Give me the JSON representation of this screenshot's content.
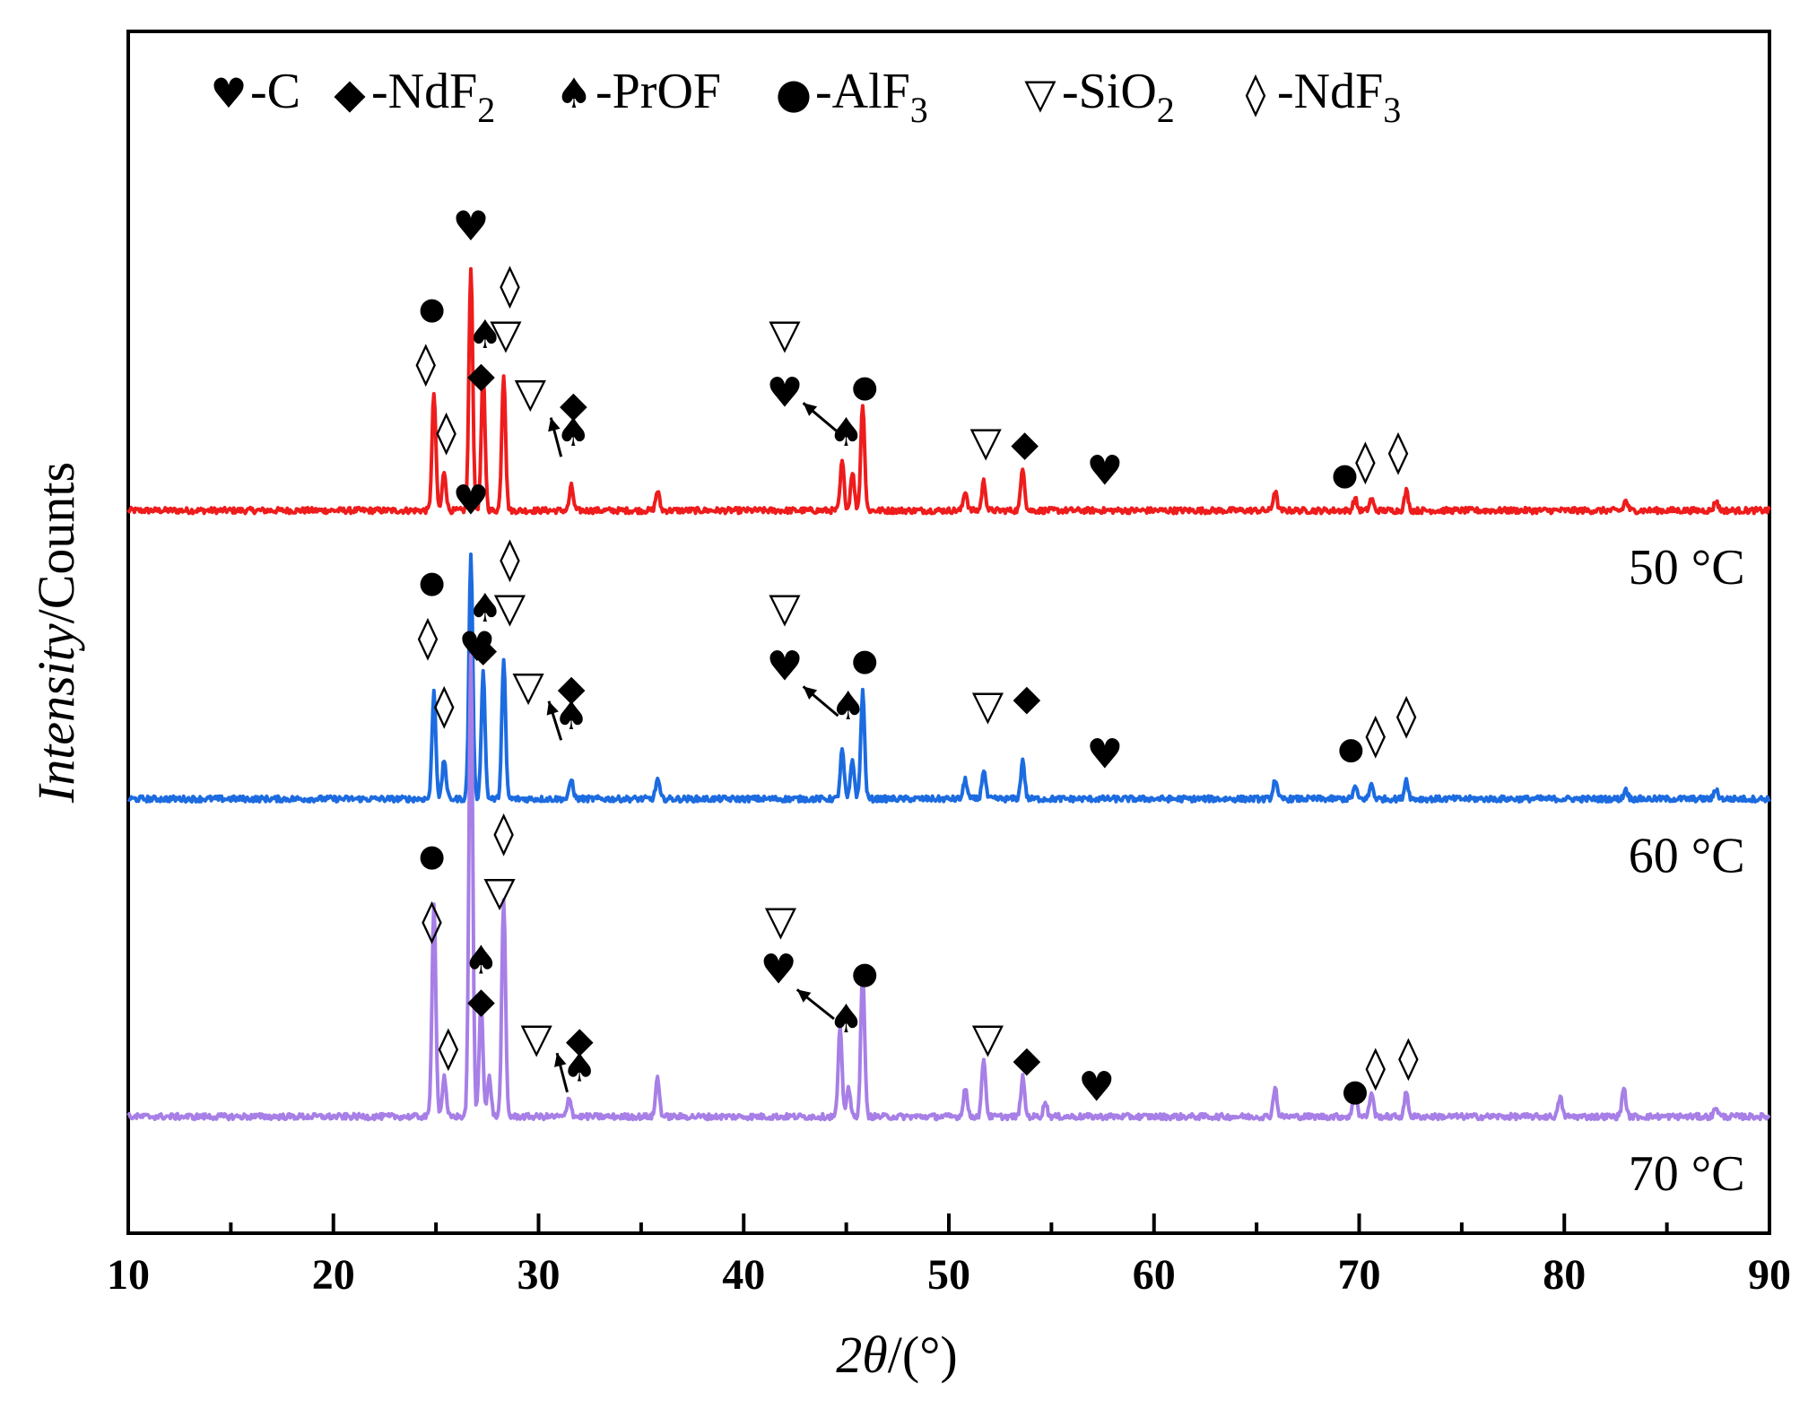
{
  "chart_data": {
    "type": "line",
    "title": "",
    "xlabel_prefix": "2θ",
    "xlabel_suffix": "/(°)",
    "ylabel_italic": "Intensity",
    "ylabel_rest": "/Counts",
    "xlim": [
      10,
      90
    ],
    "xticks": [
      10,
      20,
      30,
      40,
      50,
      60,
      70,
      80,
      90
    ],
    "grid": false,
    "legend_position": "top",
    "legend": [
      {
        "symbol": "♥",
        "label": "-C",
        "sub": ""
      },
      {
        "symbol": "◆",
        "label": "-NdF",
        "sub": "2"
      },
      {
        "symbol": "♠",
        "label": "-PrOF",
        "sub": ""
      },
      {
        "symbol": "●",
        "label": "-AlF",
        "sub": "3"
      },
      {
        "symbol": "▽",
        "label": "-SiO",
        "sub": "2"
      },
      {
        "symbol": "◊",
        "label": "-NdF",
        "sub": "3"
      }
    ],
    "series": [
      {
        "name": "50 °C",
        "color": "#ee1c1c",
        "offset": 0.62,
        "peaks": [
          {
            "x": 24.9,
            "h": 0.12
          },
          {
            "x": 25.4,
            "h": 0.04
          },
          {
            "x": 26.7,
            "h": 0.25
          },
          {
            "x": 27.3,
            "h": 0.14
          },
          {
            "x": 28.3,
            "h": 0.14
          },
          {
            "x": 31.6,
            "h": 0.025
          },
          {
            "x": 35.8,
            "h": 0.02
          },
          {
            "x": 44.8,
            "h": 0.05
          },
          {
            "x": 45.3,
            "h": 0.04
          },
          {
            "x": 45.8,
            "h": 0.11
          },
          {
            "x": 50.8,
            "h": 0.02
          },
          {
            "x": 51.7,
            "h": 0.03
          },
          {
            "x": 53.6,
            "h": 0.045
          },
          {
            "x": 65.9,
            "h": 0.02
          },
          {
            "x": 69.8,
            "h": 0.012
          },
          {
            "x": 70.6,
            "h": 0.012
          },
          {
            "x": 72.3,
            "h": 0.02
          },
          {
            "x": 83.0,
            "h": 0.01
          },
          {
            "x": 87.4,
            "h": 0.01
          }
        ]
      },
      {
        "name": "60 °C",
        "color": "#1c6be0",
        "offset": 0.325,
        "peaks": [
          {
            "x": 24.9,
            "h": 0.11
          },
          {
            "x": 25.4,
            "h": 0.04
          },
          {
            "x": 26.7,
            "h": 0.25
          },
          {
            "x": 27.3,
            "h": 0.13
          },
          {
            "x": 28.3,
            "h": 0.14
          },
          {
            "x": 31.6,
            "h": 0.02
          },
          {
            "x": 35.8,
            "h": 0.02
          },
          {
            "x": 44.8,
            "h": 0.05
          },
          {
            "x": 45.3,
            "h": 0.04
          },
          {
            "x": 45.8,
            "h": 0.11
          },
          {
            "x": 50.8,
            "h": 0.02
          },
          {
            "x": 51.7,
            "h": 0.03
          },
          {
            "x": 53.6,
            "h": 0.04
          },
          {
            "x": 65.9,
            "h": 0.02
          },
          {
            "x": 69.8,
            "h": 0.012
          },
          {
            "x": 70.6,
            "h": 0.015
          },
          {
            "x": 72.3,
            "h": 0.02
          },
          {
            "x": 83.0,
            "h": 0.01
          },
          {
            "x": 87.4,
            "h": 0.01
          }
        ]
      },
      {
        "name": "70 °C",
        "color": "#a77fe6",
        "offset": 0.0,
        "peaks": [
          {
            "x": 24.9,
            "h": 0.22
          },
          {
            "x": 25.4,
            "h": 0.04
          },
          {
            "x": 26.7,
            "h": 0.47
          },
          {
            "x": 27.2,
            "h": 0.12
          },
          {
            "x": 27.6,
            "h": 0.04
          },
          {
            "x": 28.3,
            "h": 0.22
          },
          {
            "x": 31.5,
            "h": 0.02
          },
          {
            "x": 35.8,
            "h": 0.04
          },
          {
            "x": 44.7,
            "h": 0.09
          },
          {
            "x": 45.1,
            "h": 0.03
          },
          {
            "x": 45.8,
            "h": 0.15
          },
          {
            "x": 50.8,
            "h": 0.03
          },
          {
            "x": 51.7,
            "h": 0.06
          },
          {
            "x": 53.6,
            "h": 0.04
          },
          {
            "x": 54.7,
            "h": 0.015
          },
          {
            "x": 65.9,
            "h": 0.03
          },
          {
            "x": 69.8,
            "h": 0.03
          },
          {
            "x": 70.6,
            "h": 0.025
          },
          {
            "x": 72.3,
            "h": 0.025
          },
          {
            "x": 79.8,
            "h": 0.02
          },
          {
            "x": 82.9,
            "h": 0.03
          },
          {
            "x": 87.4,
            "h": 0.01
          }
        ]
      }
    ],
    "markers": [
      {
        "series": 0,
        "symbol": "♥",
        "x": 26.7,
        "y": 0.91
      },
      {
        "series": 0,
        "symbol": "●",
        "x": 24.8,
        "y": 0.83
      },
      {
        "series": 0,
        "symbol": "◊",
        "x": 24.5,
        "y": 0.77
      },
      {
        "series": 0,
        "symbol": "◊",
        "x": 28.6,
        "y": 0.85
      },
      {
        "series": 0,
        "symbol": "♠",
        "x": 27.4,
        "y": 0.8
      },
      {
        "series": 0,
        "symbol": "▽",
        "x": 28.4,
        "y": 0.8
      },
      {
        "series": 0,
        "symbol": "◆",
        "x": 27.2,
        "y": 0.76
      },
      {
        "series": 0,
        "symbol": "▽",
        "x": 29.6,
        "y": 0.74
      },
      {
        "series": 0,
        "symbol": "◆",
        "x": 31.7,
        "y": 0.73
      },
      {
        "series": 0,
        "symbol": "♠",
        "x": 31.7,
        "y": 0.7
      },
      {
        "series": 0,
        "symbol": "◊",
        "x": 25.5,
        "y": 0.7
      },
      {
        "series": 0,
        "symbol": "▽",
        "x": 42.0,
        "y": 0.8
      },
      {
        "series": 0,
        "symbol": "♥",
        "x": 42.0,
        "y": 0.74
      },
      {
        "series": 0,
        "symbol": "♠",
        "x": 45.0,
        "y": 0.7
      },
      {
        "series": 0,
        "symbol": "●",
        "x": 45.9,
        "y": 0.75
      },
      {
        "series": 0,
        "symbol": "▽",
        "x": 51.8,
        "y": 0.69
      },
      {
        "series": 0,
        "symbol": "◆",
        "x": 53.7,
        "y": 0.69
      },
      {
        "series": 0,
        "symbol": "♥",
        "x": 57.6,
        "y": 0.66
      },
      {
        "series": 0,
        "symbol": "●",
        "x": 69.3,
        "y": 0.66
      },
      {
        "series": 0,
        "symbol": "◊",
        "x": 70.3,
        "y": 0.67
      },
      {
        "series": 0,
        "symbol": "◊",
        "x": 71.9,
        "y": 0.68
      },
      {
        "series": 1,
        "symbol": "♥",
        "x": 26.7,
        "y": 0.63
      },
      {
        "series": 1,
        "symbol": "●",
        "x": 24.8,
        "y": 0.55
      },
      {
        "series": 1,
        "symbol": "◊",
        "x": 24.6,
        "y": 0.49
      },
      {
        "series": 1,
        "symbol": "◊",
        "x": 28.6,
        "y": 0.57
      },
      {
        "series": 1,
        "symbol": "♠",
        "x": 27.4,
        "y": 0.52
      },
      {
        "series": 1,
        "symbol": "▽",
        "x": 28.6,
        "y": 0.52
      },
      {
        "series": 1,
        "symbol": "◆",
        "x": 27.3,
        "y": 0.48
      },
      {
        "series": 1,
        "symbol": "▽",
        "x": 29.5,
        "y": 0.44
      },
      {
        "series": 1,
        "symbol": "◆",
        "x": 31.6,
        "y": 0.44
      },
      {
        "series": 1,
        "symbol": "♠",
        "x": 31.6,
        "y": 0.41
      },
      {
        "series": 1,
        "symbol": "◊",
        "x": 25.4,
        "y": 0.42
      },
      {
        "series": 1,
        "symbol": "▽",
        "x": 42.0,
        "y": 0.52
      },
      {
        "series": 1,
        "symbol": "♥",
        "x": 42.0,
        "y": 0.46
      },
      {
        "series": 1,
        "symbol": "♠",
        "x": 45.1,
        "y": 0.42
      },
      {
        "series": 1,
        "symbol": "●",
        "x": 45.9,
        "y": 0.47
      },
      {
        "series": 1,
        "symbol": "▽",
        "x": 51.9,
        "y": 0.42
      },
      {
        "series": 1,
        "symbol": "◆",
        "x": 53.8,
        "y": 0.43
      },
      {
        "series": 1,
        "symbol": "♥",
        "x": 57.6,
        "y": 0.37
      },
      {
        "series": 1,
        "symbol": "●",
        "x": 69.6,
        "y": 0.38
      },
      {
        "series": 1,
        "symbol": "◊",
        "x": 70.8,
        "y": 0.39
      },
      {
        "series": 1,
        "symbol": "◊",
        "x": 72.3,
        "y": 0.41
      },
      {
        "series": 2,
        "symbol": "♥",
        "x": 27.0,
        "y": 0.48
      },
      {
        "series": 2,
        "symbol": "●",
        "x": 24.8,
        "y": 0.27
      },
      {
        "series": 2,
        "symbol": "◊",
        "x": 24.8,
        "y": 0.2
      },
      {
        "series": 2,
        "symbol": "◊",
        "x": 28.3,
        "y": 0.29
      },
      {
        "series": 2,
        "symbol": "▽",
        "x": 28.1,
        "y": 0.23
      },
      {
        "series": 2,
        "symbol": "♠",
        "x": 27.2,
        "y": 0.16
      },
      {
        "series": 2,
        "symbol": "◆",
        "x": 27.2,
        "y": 0.12
      },
      {
        "series": 2,
        "symbol": "▽",
        "x": 29.9,
        "y": 0.08
      },
      {
        "series": 2,
        "symbol": "◆",
        "x": 32.0,
        "y": 0.08
      },
      {
        "series": 2,
        "symbol": "♠",
        "x": 32.0,
        "y": 0.05
      },
      {
        "series": 2,
        "symbol": "◊",
        "x": 25.6,
        "y": 0.07
      },
      {
        "series": 2,
        "symbol": "▽",
        "x": 41.8,
        "y": 0.2
      },
      {
        "series": 2,
        "symbol": "♥",
        "x": 41.7,
        "y": 0.15
      },
      {
        "series": 2,
        "symbol": "♠",
        "x": 45.0,
        "y": 0.1
      },
      {
        "series": 2,
        "symbol": "●",
        "x": 45.9,
        "y": 0.15
      },
      {
        "series": 2,
        "symbol": "▽",
        "x": 51.9,
        "y": 0.08
      },
      {
        "series": 2,
        "symbol": "◆",
        "x": 53.8,
        "y": 0.06
      },
      {
        "series": 2,
        "symbol": "♥",
        "x": 57.2,
        "y": 0.03
      },
      {
        "series": 2,
        "symbol": "●",
        "x": 69.8,
        "y": 0.03
      },
      {
        "series": 2,
        "symbol": "◊",
        "x": 70.8,
        "y": 0.05
      },
      {
        "series": 2,
        "symbol": "◊",
        "x": 72.4,
        "y": 0.06
      }
    ],
    "arrows": [
      {
        "series": 0,
        "from": [
          30.6,
          0.715
        ],
        "to": [
          31.1,
          0.675
        ]
      },
      {
        "series": 0,
        "from": [
          42.9,
          0.73
        ],
        "to": [
          44.6,
          0.7
        ]
      },
      {
        "series": 1,
        "from": [
          30.5,
          0.425
        ],
        "to": [
          31.1,
          0.385
        ]
      },
      {
        "series": 1,
        "from": [
          42.9,
          0.44
        ],
        "to": [
          44.6,
          0.41
        ]
      },
      {
        "series": 2,
        "from": [
          30.9,
          0.065
        ],
        "to": [
          31.4,
          0.025
        ]
      },
      {
        "series": 2,
        "from": [
          42.6,
          0.13
        ],
        "to": [
          44.4,
          0.1
        ]
      }
    ]
  }
}
